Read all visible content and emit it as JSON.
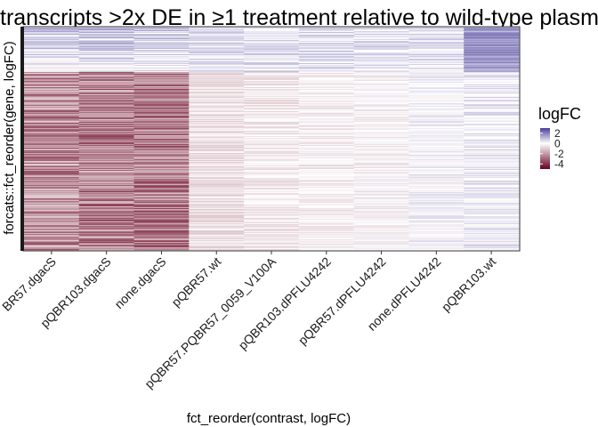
{
  "chart_data": {
    "type": "heatmap",
    "title": "transcripts >2x DE in ≥1 treatment relative to wild-type plasm",
    "xlabel": "fct_reorder(contrast, logFC)",
    "ylabel": "forcats::fct_reorder(gene, logFC)",
    "categories": [
      "BR57.dgacS",
      "pQBR103.dgacS",
      "none.dgacS",
      "pQBR57.wt",
      "pQBR57.PQBR57_0059_V100A",
      "pQBR103.dPFLU4242",
      "pQBR57.dPFLU4242",
      "none.dPFLU4242",
      "pQBR103.wt"
    ],
    "approx_mean_logFC": [
      -2.2,
      -2.4,
      -2.6,
      -0.6,
      -0.4,
      -0.3,
      -0.2,
      0.1,
      0.5
    ],
    "y_tick_labels": "not shown (many genes)",
    "color_scale": {
      "low_color": "#67001f",
      "mid_color": "#ffffff",
      "high_color": "#4a3f9b",
      "limits": [
        -5,
        3
      ]
    },
    "legend": {
      "title": "logFC",
      "ticks": [
        "2",
        "0",
        "-2",
        "-4"
      ],
      "tick_values": [
        2,
        0,
        -2,
        -4
      ],
      "placement": "right"
    },
    "grid": false
  }
}
